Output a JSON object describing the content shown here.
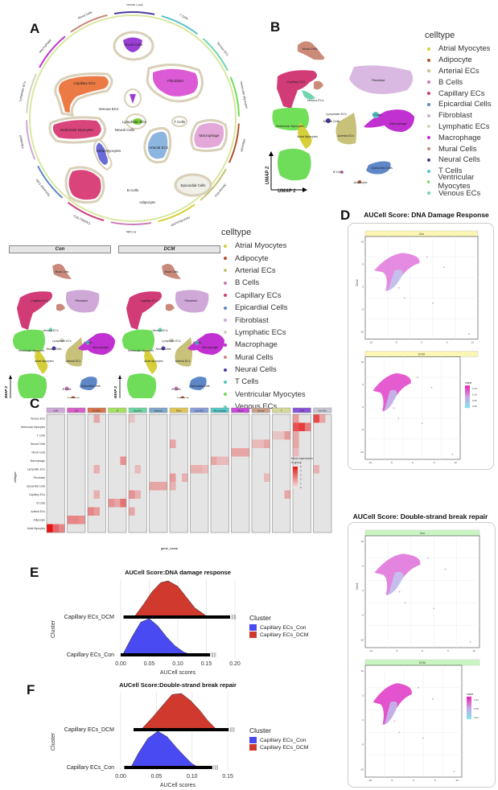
{
  "celltypes": [
    {
      "name": "Atrial Myocytes",
      "color": "#d6cf3a"
    },
    {
      "name": "Adipocyte",
      "color": "#b5532e"
    },
    {
      "name": "Arterial ECs",
      "color": "#c8c17a"
    },
    {
      "name": "B Cells",
      "color": "#c97bb6"
    },
    {
      "name": "Capillary ECs",
      "color": "#d13b76"
    },
    {
      "name": "Epicardial Cells",
      "color": "#5d87c7"
    },
    {
      "name": "Fibroblast",
      "color": "#cfa8d8"
    },
    {
      "name": "Lymphatic ECs",
      "color": "#d8d2c2"
    },
    {
      "name": "Macrophage",
      "color": "#c130d1"
    },
    {
      "name": "Mural Cells",
      "color": "#c98a7b"
    },
    {
      "name": "Neural Cells",
      "color": "#4b3a9e"
    },
    {
      "name": "T Cells",
      "color": "#58c2c9"
    },
    {
      "name": "Ventricular Myocytes",
      "color": "#6fdc5a"
    },
    {
      "name": "Venous ECs",
      "color": "#6fd6b2"
    }
  ],
  "panelA": {
    "letter": "A",
    "cluster_labels": [
      "Mural Cells",
      "Fibroblast",
      "Capillary ECs",
      "Venous ECs",
      "Lymphatic ECs",
      "Neural Cells",
      "T Cells",
      "Ventricular Myocytes",
      "Macrophage",
      "Atrial Myocytes",
      "Arterial ECs",
      "Epicardial Cells",
      "B Cells",
      "Adipocyte"
    ],
    "ring_labels": [
      "Neural Cells",
      "T Cells",
      "Venous ECs",
      "Ventricular Myocytes",
      "Adipocyte",
      "Arterial ECs",
      "Atrial Myocytes",
      "B Cells",
      "Capillary ECs",
      "Epicardial Cells",
      "Fibroblast",
      "Lymphatic ECs",
      "Macrophage",
      "Mural Cells"
    ]
  },
  "panelB": {
    "letter": "B",
    "legend_title": "celltype",
    "xlabel": "UMAP 1",
    "ylabel": "UMAP 2",
    "labels": [
      "Mural Cells",
      "Capillary ECs",
      "Fibroblast",
      "Venous ECs",
      "Lymphatic ECs",
      "T Cells",
      "Neural Cells",
      "Ventricular Myocytes",
      "Atrial Myocytes",
      "Arterial ECs",
      "Macrophage",
      "B Cells",
      "Epicardial Cells",
      "Adipocyte"
    ]
  },
  "panelSplit": {
    "legend_title": "celltype",
    "facets": [
      "Con",
      "DCM"
    ],
    "xlabel": "UMAP 1",
    "ylabel": "UMAP 2"
  },
  "panelC": {
    "letter": "C",
    "ylabel": "celltype",
    "xlabel": "gene_name",
    "legend_title": "Mean expression in group",
    "legend_ticks": [
      "0",
      "1",
      "2",
      "3",
      "4",
      "5"
    ],
    "groups": [
      "aCM",
      "Adi",
      "Art ECs",
      "B",
      "Cap ECs",
      "Epicard",
      "Fibro",
      "Lym ECs",
      "Macrophage",
      "Mural",
      "Neural",
      "T",
      "vCM",
      "Ven ECs"
    ],
    "group_colors": [
      "#cfa8d8",
      "#d65fc8",
      "#d9744f",
      "#a5e062",
      "#6fd6a6",
      "#7fa8c9",
      "#e0c65a",
      "#8a9ed8",
      "#58c9c9",
      "#c84ad9",
      "#c9a08a",
      "#d4d99a",
      "#8a55d9",
      "#c8c8d4"
    ],
    "rows": [
      "Venous ECs",
      "Ventricular Myocytes",
      "T Cells",
      "Neural Cells",
      "Mural Cells",
      "Macrophage",
      "Lymphatic ECs",
      "Fibroblast",
      "Epicardial Cells",
      "Capillary ECs",
      "B Cells",
      "Arterial ECs",
      "Adipocyte",
      "Atrial Myocytes"
    ]
  },
  "panelD": {
    "letter": "D",
    "plots": [
      {
        "title": "AUCell Score: DNA Damage Response",
        "strip_color": "#fbf6b3",
        "facets": [
          "Con",
          "DCM"
        ],
        "ylabel": "Dim2",
        "x_ticks": [
          "-10",
          "-5",
          "0",
          "5",
          "10"
        ],
        "y_ticks": [
          "10",
          "5",
          "0",
          "-5",
          "-10"
        ],
        "legend_title": "value",
        "legend_ticks": [
          "0.15",
          "0.10",
          "0.05",
          "0.00"
        ]
      },
      {
        "title": "AUCell Score: Double-strand break repair",
        "strip_color": "#c8f5c0",
        "facets": [
          "Con",
          "DCM"
        ],
        "ylabel": "Dim2",
        "x_ticks": [
          "-10",
          "-5",
          "0",
          "5",
          "10"
        ],
        "y_ticks": [
          "10",
          "5",
          "0",
          "-5",
          "-10"
        ],
        "legend_title": "value",
        "legend_ticks": [
          "0.12",
          "0.08",
          "0.04"
        ]
      }
    ]
  },
  "chart_data": [
    {
      "type": "area",
      "panel": "E",
      "title": "AUCell Score:DNA damage response",
      "xlabel": "AUCell scores",
      "ylabel": "Cluster",
      "xlim": [
        0,
        0.2
      ],
      "x_ticks": [
        "0.00",
        "0.05",
        "0.10",
        "0.15",
        "0.20"
      ],
      "categories": [
        "Capillary ECs_Con",
        "Capillary ECs_DCM"
      ],
      "legend_title": "Cluster",
      "legend_position": "right",
      "series": [
        {
          "name": "Capillary ECs_Con",
          "color": "#4a4af2",
          "x": [
            0.005,
            0.02,
            0.035,
            0.05,
            0.065,
            0.08,
            0.095,
            0.11,
            0.12
          ],
          "y": [
            0.05,
            0.5,
            0.9,
            1.0,
            0.8,
            0.5,
            0.25,
            0.08,
            0.02
          ],
          "range": [
            0.0,
            0.165
          ]
        },
        {
          "name": "Capillary ECs_DCM",
          "color": "#d03a2e",
          "x": [
            0.025,
            0.04,
            0.055,
            0.07,
            0.083,
            0.1,
            0.115,
            0.13,
            0.15
          ],
          "y": [
            0.03,
            0.35,
            0.7,
            0.95,
            1.0,
            0.85,
            0.55,
            0.25,
            0.03
          ],
          "range": [
            0.005,
            0.2
          ]
        }
      ]
    },
    {
      "type": "area",
      "panel": "F",
      "title": "AUCell Score:Double-strand break repair",
      "xlabel": "AUCell scores",
      "ylabel": "Cluster",
      "xlim": [
        0,
        0.16
      ],
      "x_ticks": [
        "0.00",
        "0.05",
        "0.10",
        "0.15"
      ],
      "categories": [
        "Capillary ECs_Con",
        "Capillary ECs_DCM"
      ],
      "legend_title": "Cluster",
      "legend_position": "right",
      "series": [
        {
          "name": "Capillary ECs_Con",
          "color": "#4a4af2",
          "x": [
            0.015,
            0.025,
            0.038,
            0.052,
            0.065,
            0.078,
            0.09,
            0.1,
            0.108
          ],
          "y": [
            0.03,
            0.4,
            0.8,
            1.0,
            0.85,
            0.55,
            0.3,
            0.1,
            0.02
          ],
          "range": [
            0.005,
            0.135
          ]
        },
        {
          "name": "Capillary ECs_DCM",
          "color": "#d03a2e",
          "x": [
            0.03,
            0.045,
            0.06,
            0.072,
            0.085,
            0.098,
            0.11,
            0.122,
            0.133
          ],
          "y": [
            0.03,
            0.35,
            0.7,
            0.97,
            1.0,
            0.8,
            0.55,
            0.25,
            0.03
          ],
          "range": [
            0.018,
            0.158
          ]
        }
      ]
    }
  ]
}
